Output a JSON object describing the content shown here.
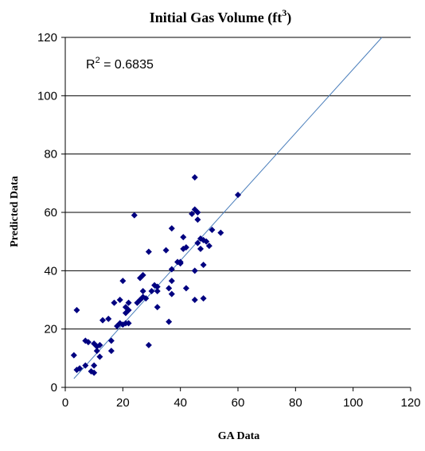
{
  "chart_data": {
    "type": "scatter",
    "title": {
      "prefix": "Initial Gas Volume (ft",
      "superscript": "3",
      "suffix": ")"
    },
    "xlabel": "GA Data",
    "ylabel": "Predicted Data",
    "xlim": [
      0,
      120
    ],
    "ylim": [
      0,
      120
    ],
    "x_ticks": [
      "0",
      "20",
      "40",
      "60",
      "80",
      "100",
      "120"
    ],
    "y_ticks": [
      "0",
      "20",
      "40",
      "60",
      "80",
      "100",
      "120"
    ],
    "grid": "horizontal",
    "annotation": {
      "prefix": "R",
      "superscript": "2",
      "suffix": " = 0.6835"
    },
    "trendline": {
      "x": [
        3,
        110
      ],
      "y": [
        3,
        120
      ]
    },
    "colors": {
      "points": "#000080",
      "trendline": "#4a7ebb",
      "grid": "#000000"
    },
    "series": [
      {
        "points": [
          [
            3,
            11
          ],
          [
            4,
            6
          ],
          [
            4,
            26.5
          ],
          [
            5,
            6.5
          ],
          [
            7,
            16
          ],
          [
            7,
            7.5
          ],
          [
            8,
            15.5
          ],
          [
            9,
            5.5
          ],
          [
            10,
            5
          ],
          [
            10,
            7.5
          ],
          [
            10,
            15
          ],
          [
            11,
            14
          ],
          [
            11,
            12.5
          ],
          [
            12,
            10.5
          ],
          [
            12,
            14.5
          ],
          [
            13,
            23
          ],
          [
            15,
            23.5
          ],
          [
            16,
            12.5
          ],
          [
            16,
            16
          ],
          [
            17,
            29
          ],
          [
            18,
            21
          ],
          [
            19,
            22
          ],
          [
            19,
            30
          ],
          [
            20,
            21.5
          ],
          [
            20,
            36.5
          ],
          [
            21,
            22
          ],
          [
            21,
            25.5
          ],
          [
            21,
            27.5
          ],
          [
            22,
            22
          ],
          [
            22,
            26.5
          ],
          [
            22,
            29
          ],
          [
            24,
            59
          ],
          [
            25,
            29
          ],
          [
            26,
            30
          ],
          [
            26,
            37.5
          ],
          [
            27,
            38.5
          ],
          [
            27,
            31
          ],
          [
            27,
            33
          ],
          [
            28,
            30.5
          ],
          [
            29,
            14.5
          ],
          [
            29,
            46.5
          ],
          [
            30,
            33
          ],
          [
            31,
            35
          ],
          [
            32,
            27.5
          ],
          [
            32,
            33
          ],
          [
            32,
            34.5
          ],
          [
            35,
            47
          ],
          [
            36,
            34
          ],
          [
            36,
            22.5
          ],
          [
            37,
            36.5
          ],
          [
            37,
            32
          ],
          [
            37,
            40.5
          ],
          [
            37,
            54.5
          ],
          [
            39,
            43
          ],
          [
            40,
            43
          ],
          [
            40,
            42.5
          ],
          [
            41,
            47.5
          ],
          [
            41,
            51.5
          ],
          [
            42,
            48
          ],
          [
            42,
            34
          ],
          [
            44,
            59.5
          ],
          [
            45,
            72
          ],
          [
            45,
            61
          ],
          [
            45,
            40
          ],
          [
            45,
            30
          ],
          [
            46,
            49.5
          ],
          [
            46,
            60
          ],
          [
            46,
            57.5
          ],
          [
            47,
            51
          ],
          [
            47,
            47.5
          ],
          [
            48,
            50.5
          ],
          [
            48,
            42
          ],
          [
            48,
            30.5
          ],
          [
            49,
            50
          ],
          [
            50,
            48.5
          ],
          [
            51,
            54
          ],
          [
            54,
            53
          ],
          [
            60,
            66
          ]
        ]
      }
    ]
  }
}
